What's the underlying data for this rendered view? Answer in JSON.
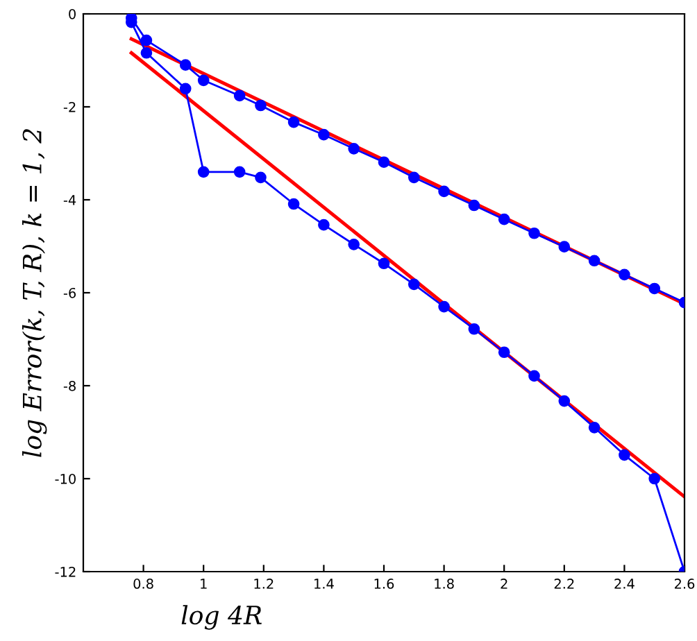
{
  "chart_data": {
    "type": "line",
    "xlabel": "log 4R",
    "ylabel": "log Error(k, T, R), k = 1, 2",
    "xlim": [
      0.6,
      2.6
    ],
    "ylim": [
      -12,
      0
    ],
    "xticks": [
      0.8,
      1,
      1.2,
      1.4,
      1.6,
      1.8,
      2,
      2.2,
      2.4,
      2.6
    ],
    "yticks": [
      -12,
      -10,
      -8,
      -6,
      -4,
      -2,
      0
    ],
    "grid": false,
    "legend": false,
    "series": [
      {
        "color": "#0000ff",
        "marker": "circle",
        "x": [
          0.76,
          0.81,
          0.94,
          1.0,
          1.12,
          1.19,
          1.3,
          1.4,
          1.5,
          1.6,
          1.7,
          1.8,
          1.9,
          2.0,
          2.1,
          2.2,
          2.3,
          2.4,
          2.5,
          2.6
        ],
        "values": [
          -0.09,
          -0.57,
          -1.1,
          -1.43,
          -1.76,
          -1.97,
          -2.33,
          -2.6,
          -2.9,
          -3.19,
          -3.52,
          -3.82,
          -4.12,
          -4.42,
          -4.72,
          -5.01,
          -5.31,
          -5.61,
          -5.91,
          -6.21
        ]
      },
      {
        "color": "#0000ff",
        "marker": "circle",
        "x": [
          0.76,
          0.81,
          0.94,
          1.0,
          1.12,
          1.19,
          1.3,
          1.4,
          1.5,
          1.6,
          1.7,
          1.8,
          1.9,
          2.0,
          2.1,
          2.2,
          2.3,
          2.4,
          2.5,
          2.6
        ],
        "values": [
          -0.18,
          -0.84,
          -1.61,
          -3.4,
          -3.4,
          -3.52,
          -4.09,
          -4.54,
          -4.96,
          -5.37,
          -5.82,
          -6.3,
          -6.78,
          -7.28,
          -7.79,
          -8.33,
          -8.9,
          -9.49,
          -10.0,
          -12.0
        ]
      },
      {
        "color": "#ff0000",
        "marker": "none",
        "x": [
          0.76,
          2.6
        ],
        "values": [
          -0.54,
          -6.24
        ]
      },
      {
        "color": "#ff0000",
        "marker": "none",
        "x": [
          0.76,
          2.6
        ],
        "values": [
          -0.84,
          -10.39
        ]
      }
    ]
  }
}
